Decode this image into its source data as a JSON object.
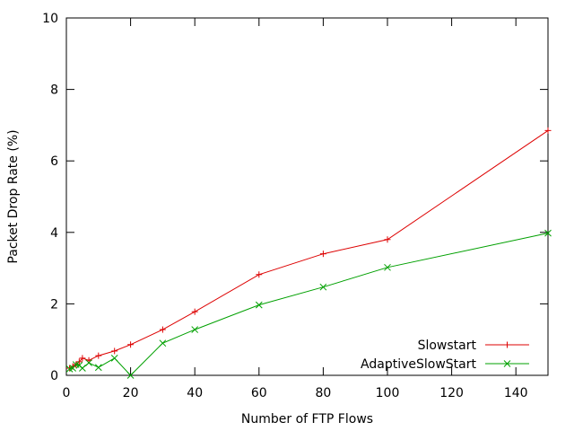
{
  "chart_data": {
    "type": "line",
    "title": "",
    "xlabel": "Number of FTP Flows",
    "ylabel": "Packet Drop Rate (%)",
    "xlim": [
      0,
      150
    ],
    "ylim": [
      0,
      10
    ],
    "xticks": [
      0,
      20,
      40,
      60,
      80,
      100,
      120,
      140
    ],
    "yticks": [
      0,
      2,
      4,
      6,
      8,
      10
    ],
    "grid": false,
    "legend_position": "bottom-right",
    "series": [
      {
        "name": "Slowstart",
        "color": "#dd0000",
        "marker": "plus",
        "points": [
          [
            1,
            0.2
          ],
          [
            2,
            0.25
          ],
          [
            3,
            0.3
          ],
          [
            4,
            0.38
          ],
          [
            5,
            0.48
          ],
          [
            7,
            0.42
          ],
          [
            10,
            0.55
          ],
          [
            15,
            0.68
          ],
          [
            20,
            0.86
          ],
          [
            30,
            1.28
          ],
          [
            40,
            1.78
          ],
          [
            60,
            2.82
          ],
          [
            80,
            3.4
          ],
          [
            100,
            3.8
          ],
          [
            150,
            6.85
          ]
        ]
      },
      {
        "name": "AdaptiveSlowStart",
        "color": "#00a000",
        "marker": "x",
        "points": [
          [
            1,
            0.18
          ],
          [
            2,
            0.2
          ],
          [
            3,
            0.3
          ],
          [
            4,
            0.28
          ],
          [
            5,
            0.2
          ],
          [
            7,
            0.35
          ],
          [
            10,
            0.22
          ],
          [
            15,
            0.48
          ],
          [
            20,
            0.0
          ],
          [
            30,
            0.9
          ],
          [
            40,
            1.28
          ],
          [
            60,
            1.97
          ],
          [
            80,
            2.47
          ],
          [
            100,
            3.02
          ],
          [
            150,
            3.98
          ]
        ]
      }
    ]
  }
}
